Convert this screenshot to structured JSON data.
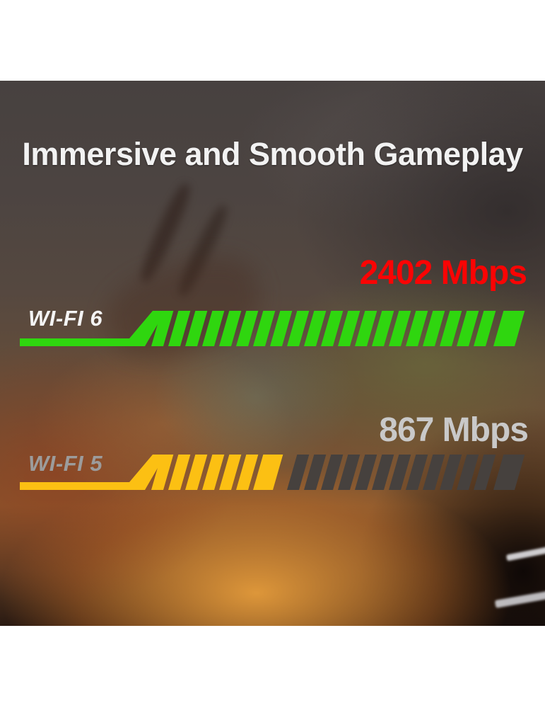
{
  "title": "Immersive and Smooth Gameplay",
  "max_value": 2402,
  "bars": [
    {
      "id": "wifi6",
      "label": "WI-FI 6",
      "speed_label": "2402 Mbps",
      "value": 2402,
      "bar_color": "#2fd60f",
      "label_color": "#f4f4f4",
      "speed_color": "#fa0404"
    },
    {
      "id": "wifi5",
      "label": "WI-FI 5",
      "speed_label": "867 Mbps",
      "value": 867,
      "bar_color": "#fcc013",
      "track_color": "#46413e",
      "label_color": "#9c9c9c",
      "speed_color": "#c9c9c9"
    }
  ],
  "chart_data": {
    "type": "bar",
    "orientation": "horizontal",
    "title": "Immersive and Smooth Gameplay",
    "categories": [
      "WI-FI 6",
      "WI-FI 5"
    ],
    "values": [
      2402,
      867
    ],
    "unit": "Mbps",
    "xlim": [
      0,
      2402
    ],
    "bar_colors": [
      "#2fd60f",
      "#fcc013"
    ],
    "track_color": "#46413e",
    "annotations": [
      "2402 Mbps",
      "867 Mbps"
    ],
    "legend": "none",
    "grid": false
  }
}
